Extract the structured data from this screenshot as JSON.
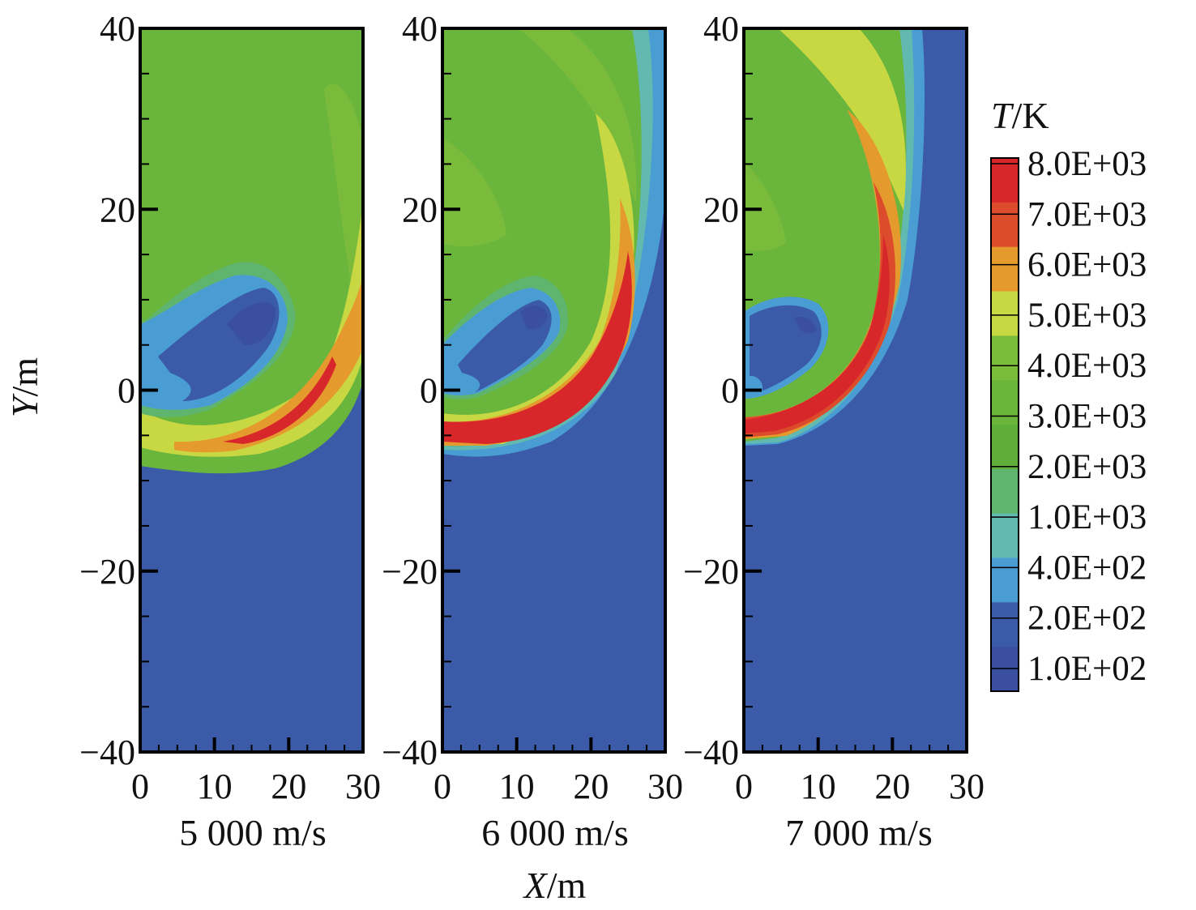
{
  "chart_data": {
    "type": "heatmap",
    "colorbar": {
      "title_var": "T",
      "title_unit": "/K",
      "levels": [
        "8.0E+03",
        "7.0E+03",
        "6.0E+03",
        "5.0E+03",
        "4.0E+03",
        "3.0E+03",
        "2.0E+03",
        "1.0E+03",
        "4.0E+02",
        "2.0E+02",
        "1.0E+02"
      ],
      "colors": [
        "#d7272a",
        "#db4b2c",
        "#e59a2d",
        "#c8d843",
        "#7bbb3c",
        "#6ab53b",
        "#5fae3a",
        "#5fb56d",
        "#61b9b0",
        "#4a9dd3",
        "#3b5aa8",
        "#3b4fa0"
      ]
    },
    "xlabel_var": "X",
    "xlabel_unit": "/m",
    "ylabel_var": "Y",
    "ylabel_unit": "/m",
    "xlim": [
      0,
      30
    ],
    "ylim": [
      -40,
      40
    ],
    "x_ticks": [
      "0",
      "10",
      "20",
      "30"
    ],
    "y_ticks": [
      "40",
      "20",
      "0",
      "−20",
      "−40"
    ],
    "panels": [
      {
        "caption": "5 000 m/s",
        "velocity": 5000
      },
      {
        "caption": "6 000 m/s",
        "velocity": 6000
      },
      {
        "caption": "7 000 m/s",
        "velocity": 7000
      }
    ]
  }
}
